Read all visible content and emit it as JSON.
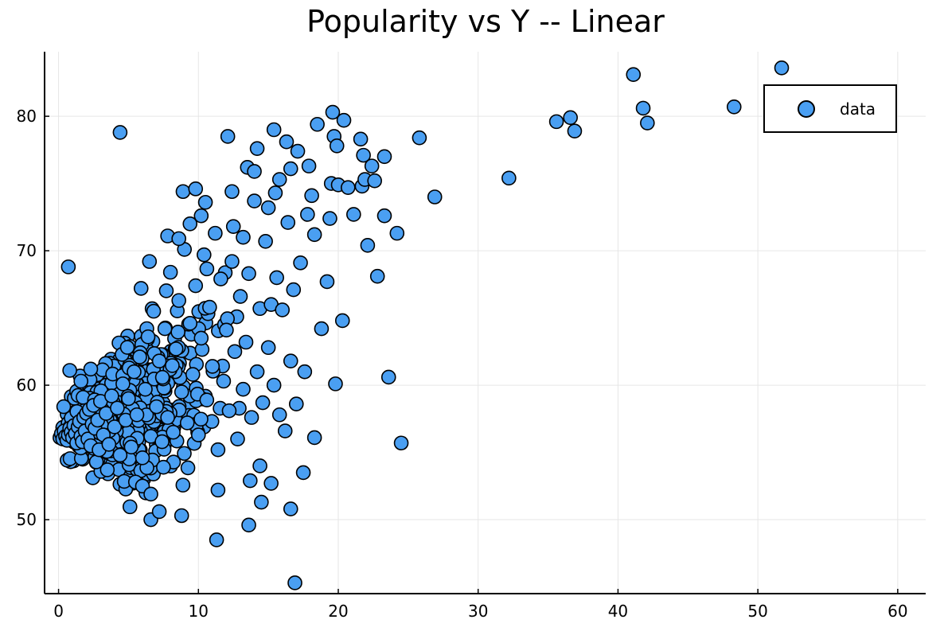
{
  "chart_data": {
    "type": "scatter",
    "title": "Popularity vs Y -- Linear",
    "xlabel": "",
    "ylabel": "",
    "xlim": [
      -1,
      62
    ],
    "ylim": [
      44.5,
      84.8
    ],
    "x_ticks": [
      0,
      10,
      20,
      30,
      40,
      50,
      60
    ],
    "y_ticks": [
      50,
      60,
      70,
      80
    ],
    "grid": true,
    "legend_position": "top-right",
    "marker_color": "#4a9ff2",
    "series": [
      {
        "name": "data",
        "points": [
          [
            0.1,
            56.1
          ],
          [
            0.2,
            56.4
          ],
          [
            0.3,
            56.0
          ],
          [
            0.4,
            56.6
          ],
          [
            0.5,
            56.2
          ],
          [
            0.6,
            55.9
          ],
          [
            0.7,
            56.3
          ],
          [
            0.8,
            56.8
          ],
          [
            0.9,
            56.5
          ],
          [
            1.0,
            56.1
          ],
          [
            1.1,
            57.0
          ],
          [
            1.2,
            56.4
          ],
          [
            1.3,
            55.7
          ],
          [
            1.4,
            56.9
          ],
          [
            1.5,
            57.3
          ],
          [
            1.6,
            56.2
          ],
          [
            1.7,
            55.8
          ],
          [
            1.8,
            57.6
          ],
          [
            1.9,
            56.6
          ],
          [
            2.0,
            57.9
          ],
          [
            2.1,
            56.0
          ],
          [
            2.2,
            58.2
          ],
          [
            2.3,
            55.5
          ],
          [
            2.4,
            57.1
          ],
          [
            2.5,
            58.5
          ],
          [
            2.6,
            56.8
          ],
          [
            2.7,
            54.3
          ],
          [
            2.8,
            57.4
          ],
          [
            2.9,
            55.2
          ],
          [
            3.0,
            58.8
          ],
          [
            3.2,
            56.3
          ],
          [
            3.4,
            57.9
          ],
          [
            3.6,
            55.6
          ],
          [
            3.8,
            59.2
          ],
          [
            4.0,
            56.9
          ],
          [
            4.2,
            58.3
          ],
          [
            4.4,
            54.8
          ],
          [
            4.6,
            60.1
          ],
          [
            4.8,
            57.4
          ],
          [
            5.0,
            59.0
          ],
          [
            0.7,
            68.8
          ],
          [
            0.8,
            61.1
          ],
          [
            1.6,
            60.3
          ],
          [
            2.3,
            61.2
          ],
          [
            4.4,
            78.8
          ],
          [
            5.2,
            55.4
          ],
          [
            5.4,
            61.0
          ],
          [
            5.6,
            57.8
          ],
          [
            5.8,
            62.1
          ],
          [
            6.0,
            54.6
          ],
          [
            6.2,
            59.7
          ],
          [
            6.4,
            63.6
          ],
          [
            6.6,
            56.2
          ],
          [
            6.8,
            65.5
          ],
          [
            7.0,
            58.4
          ],
          [
            5.5,
            52.8
          ],
          [
            6.0,
            52.5
          ],
          [
            6.6,
            51.9
          ],
          [
            6.6,
            50.0
          ],
          [
            7.2,
            50.6
          ],
          [
            7.5,
            53.9
          ],
          [
            5.9,
            67.2
          ],
          [
            6.5,
            69.2
          ],
          [
            7.2,
            61.8
          ],
          [
            7.4,
            55.8
          ],
          [
            7.6,
            64.2
          ],
          [
            7.8,
            57.6
          ],
          [
            8.0,
            68.4
          ],
          [
            8.2,
            56.5
          ],
          [
            8.4,
            62.7
          ],
          [
            8.6,
            66.3
          ],
          [
            8.8,
            59.5
          ],
          [
            9.0,
            70.1
          ],
          [
            8.8,
            50.3
          ],
          [
            7.8,
            71.1
          ],
          [
            8.6,
            70.9
          ],
          [
            8.9,
            74.4
          ],
          [
            9.4,
            72.0
          ],
          [
            9.8,
            74.6
          ],
          [
            10.2,
            72.6
          ],
          [
            10.5,
            73.6
          ],
          [
            9.2,
            57.2
          ],
          [
            9.4,
            64.6
          ],
          [
            9.6,
            60.8
          ],
          [
            9.8,
            67.4
          ],
          [
            10.0,
            56.3
          ],
          [
            10.2,
            63.5
          ],
          [
            10.4,
            69.7
          ],
          [
            10.6,
            58.9
          ],
          [
            10.8,
            65.8
          ],
          [
            11.0,
            61.4
          ],
          [
            11.2,
            71.3
          ],
          [
            11.4,
            55.2
          ],
          [
            11.6,
            67.9
          ],
          [
            11.8,
            60.3
          ],
          [
            12.0,
            64.1
          ],
          [
            12.2,
            58.1
          ],
          [
            12.4,
            69.2
          ],
          [
            12.6,
            62.5
          ],
          [
            12.8,
            56.0
          ],
          [
            13.0,
            66.6
          ],
          [
            11.3,
            48.5
          ],
          [
            11.4,
            52.2
          ],
          [
            12.1,
            78.5
          ],
          [
            12.4,
            74.4
          ],
          [
            12.5,
            71.8
          ],
          [
            13.2,
            71.0
          ],
          [
            13.5,
            76.2
          ],
          [
            13.7,
            52.9
          ],
          [
            13.6,
            49.6
          ],
          [
            13.2,
            59.7
          ],
          [
            13.4,
            63.2
          ],
          [
            13.6,
            68.3
          ],
          [
            13.8,
            57.6
          ],
          [
            14.0,
            73.7
          ],
          [
            14.2,
            61.0
          ],
          [
            14.4,
            65.7
          ],
          [
            14.6,
            58.7
          ],
          [
            14.8,
            70.7
          ],
          [
            15.0,
            62.8
          ],
          [
            14.2,
            77.6
          ],
          [
            14.0,
            75.9
          ],
          [
            14.4,
            54.0
          ],
          [
            14.5,
            51.3
          ],
          [
            15.0,
            73.2
          ],
          [
            15.2,
            52.7
          ],
          [
            15.4,
            79.0
          ],
          [
            15.8,
            75.3
          ],
          [
            15.5,
            74.3
          ],
          [
            15.2,
            66.0
          ],
          [
            15.4,
            60.0
          ],
          [
            15.6,
            68.0
          ],
          [
            15.8,
            57.8
          ],
          [
            16.0,
            65.6
          ],
          [
            16.2,
            56.6
          ],
          [
            16.4,
            72.1
          ],
          [
            16.6,
            61.8
          ],
          [
            16.8,
            67.1
          ],
          [
            17.0,
            58.6
          ],
          [
            16.3,
            78.1
          ],
          [
            16.6,
            76.1
          ],
          [
            16.6,
            50.8
          ],
          [
            16.9,
            45.3
          ],
          [
            17.1,
            77.4
          ],
          [
            17.3,
            69.1
          ],
          [
            17.5,
            53.5
          ],
          [
            17.6,
            61.0
          ],
          [
            17.8,
            72.7
          ],
          [
            17.9,
            76.3
          ],
          [
            18.1,
            74.1
          ],
          [
            18.3,
            71.2
          ],
          [
            18.3,
            56.1
          ],
          [
            18.5,
            79.4
          ],
          [
            18.8,
            64.2
          ],
          [
            19.2,
            67.7
          ],
          [
            19.4,
            72.4
          ],
          [
            19.5,
            75.0
          ],
          [
            19.6,
            80.3
          ],
          [
            19.7,
            78.5
          ],
          [
            19.9,
            77.8
          ],
          [
            20.0,
            74.9
          ],
          [
            19.8,
            60.1
          ],
          [
            20.3,
            64.8
          ],
          [
            20.4,
            79.7
          ],
          [
            20.7,
            74.7
          ],
          [
            21.1,
            72.7
          ],
          [
            21.6,
            78.3
          ],
          [
            21.7,
            74.8
          ],
          [
            21.8,
            77.1
          ],
          [
            21.9,
            75.3
          ],
          [
            22.1,
            70.4
          ],
          [
            22.4,
            76.3
          ],
          [
            22.6,
            75.2
          ],
          [
            22.8,
            68.1
          ],
          [
            23.3,
            72.6
          ],
          [
            23.3,
            77.0
          ],
          [
            23.6,
            60.6
          ],
          [
            24.2,
            71.3
          ],
          [
            24.5,
            55.7
          ],
          [
            25.8,
            78.4
          ],
          [
            26.9,
            74.0
          ],
          [
            32.2,
            75.4
          ],
          [
            35.6,
            79.6
          ],
          [
            36.6,
            79.9
          ],
          [
            36.9,
            78.9
          ],
          [
            41.1,
            83.1
          ],
          [
            41.8,
            80.6
          ],
          [
            42.1,
            79.5
          ],
          [
            48.3,
            80.7
          ],
          [
            51.7,
            83.6
          ]
        ]
      }
    ]
  }
}
